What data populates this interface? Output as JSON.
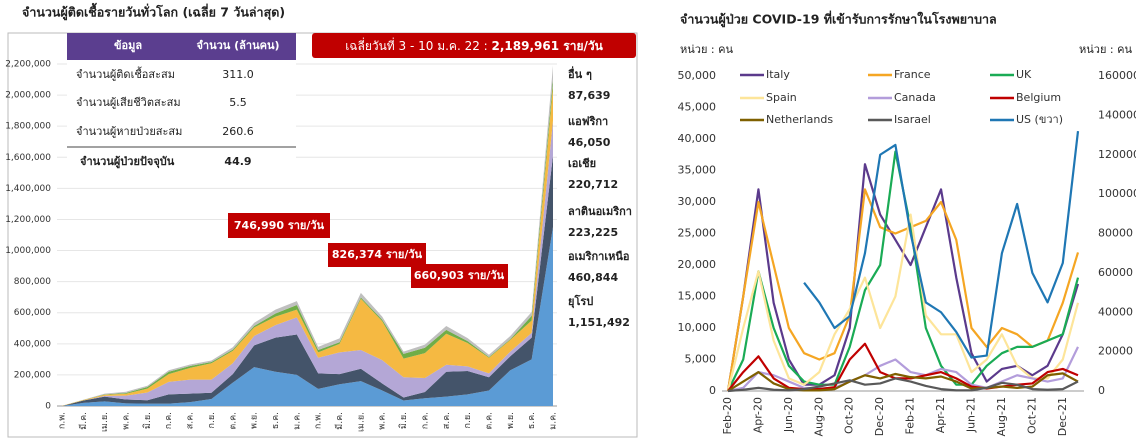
{
  "chart_data": [
    {
      "type": "area",
      "stacked": true,
      "title": "จำนวนผู้ติดเชื้อรายวันทั่วโลก (เฉลี่ย 7 วันล่าสุด)",
      "table": {
        "header": [
          "ข้อมูล",
          "จำนวน (ล้านคน)"
        ],
        "rows": [
          [
            "จำนวนผู้ติดเชื้อสะสม",
            "311.0"
          ],
          [
            "จำนวนผู้เสียชีวิตสะสม",
            "5.5"
          ],
          [
            "จำนวนผู้หายป่วยสะสม",
            "260.6"
          ],
          [
            "จำนวนผู้ป่วยปัจจุบัน",
            "44.9"
          ]
        ]
      },
      "banner": {
        "text": "เฉลี่ยวันที่ 3 - 10 ม.ค. 22 : ",
        "highlight": "2,189,961 ราย/วัน"
      },
      "annotations": [
        "746,990 ราย/วัน",
        "826,374 ราย/วัน",
        "660,903 ราย/วัน"
      ],
      "categories": [
        "ก.พ.",
        "มี.ค.",
        "เม.ย.",
        "พ.ค.",
        "มิ.ย.",
        "ก.ค.",
        "ส.ค.",
        "ก.ย.",
        "ต.ค.",
        "พ.ย.",
        "ธ.ค.",
        "ม.ค.",
        "ก.พ.",
        "มี.ค.",
        "เม.ย.",
        "พ.ค.",
        "มิ.ย.",
        "ก.ค.",
        "ส.ค.",
        "ก.ย.",
        "ต.ค.",
        "พ.ย.",
        "ธ.ค.",
        "ม.ค."
      ],
      "series": [
        {
          "name": "ยุโรป",
          "color": "#5b9bd5",
          "end_label": "1,151,492",
          "values": [
            0,
            20000,
            30000,
            17000,
            15000,
            15000,
            25000,
            45000,
            150000,
            250000,
            220000,
            200000,
            110000,
            140000,
            160000,
            100000,
            35000,
            50000,
            60000,
            75000,
            100000,
            230000,
            300000,
            1151492
          ]
        },
        {
          "name": "อเมริกาเหนือ",
          "color": "#44546a",
          "end_label": "460,844",
          "values": [
            0,
            15000,
            30000,
            25000,
            22000,
            60000,
            55000,
            40000,
            55000,
            140000,
            220000,
            260000,
            100000,
            65000,
            80000,
            45000,
            20000,
            40000,
            160000,
            150000,
            85000,
            90000,
            140000,
            460844
          ]
        },
        {
          "name": "ลาตินอเมริกา",
          "color": "#b4a7d6",
          "end_label": "223,225",
          "values": [
            0,
            500,
            5000,
            25000,
            50000,
            80000,
            90000,
            85000,
            70000,
            60000,
            80000,
            110000,
            100000,
            140000,
            120000,
            150000,
            130000,
            90000,
            45000,
            30000,
            25000,
            30000,
            30000,
            223225
          ]
        },
        {
          "name": "เอเชีย",
          "color": "#f5b942",
          "end_label": "220,712",
          "values": [
            2000,
            3000,
            7000,
            12000,
            25000,
            50000,
            75000,
            105000,
            80000,
            55000,
            55000,
            50000,
            35000,
            55000,
            330000,
            250000,
            120000,
            160000,
            200000,
            150000,
            100000,
            75000,
            80000,
            220712
          ]
        },
        {
          "name": "แอฟริกา",
          "color": "#70ad47",
          "end_label": "46,050",
          "values": [
            0,
            500,
            3000,
            5000,
            10000,
            15000,
            12000,
            8000,
            8000,
            10000,
            20000,
            30000,
            15000,
            10000,
            8000,
            10000,
            30000,
            35000,
            25000,
            12000,
            5000,
            5000,
            30000,
            46050
          ]
        },
        {
          "name": "อื่น ๆ",
          "color": "#bfbfbf",
          "end_label": "87,639",
          "values": [
            0,
            1000,
            5000,
            8000,
            8000,
            10000,
            10000,
            10000,
            15000,
            20000,
            25000,
            25000,
            20000,
            25000,
            30000,
            20000,
            15000,
            20000,
            25000,
            20000,
            15000,
            20000,
            25000,
            87639
          ]
        }
      ],
      "ylim": [
        0,
        2200000
      ],
      "yticks": [
        0,
        {
          "value": 200000,
          "label": "200,000"
        },
        {
          "value": 400000,
          "label": "400,000"
        },
        {
          "value": 600000,
          "label": "600,000"
        },
        {
          "value": 800000,
          "label": "800,000"
        },
        {
          "value": 1000000,
          "label": "1,000,000"
        },
        {
          "value": 1200000,
          "label": "1,200,000"
        },
        {
          "value": 1400000,
          "label": "1,400,000"
        },
        {
          "value": 1600000,
          "label": "1,600,000"
        },
        {
          "value": 1800000,
          "label": "1,800,000"
        },
        {
          "value": 2000000,
          "label": "2,000,000"
        },
        {
          "value": 2200000,
          "label": "2,200,000"
        }
      ],
      "grid": true
    },
    {
      "type": "line",
      "title": "จำนวนผู้ป่วย COVID-19 ที่เข้ารับการรักษาในโรงพยาบาล",
      "y_unit": "หน่วย : คน",
      "y2_unit": "หน่วย : คน",
      "legend": "top-left",
      "categories": [
        "Feb-20",
        null,
        "Apr-20",
        null,
        "Jun-20",
        null,
        "Aug-20",
        null,
        "Oct-20",
        null,
        "Dec-20",
        null,
        "Feb-21",
        null,
        "Apr-21",
        null,
        "Jun-21",
        null,
        "Aug-21",
        null,
        "Oct-21",
        null,
        "Dec-21",
        null
      ],
      "series": [
        {
          "name": "Italy",
          "color": "#5b3a8c",
          "values": [
            0,
            15000,
            32000,
            14000,
            5000,
            1000,
            1000,
            2500,
            10000,
            36000,
            28000,
            24000,
            20000,
            26000,
            32000,
            18000,
            6000,
            1500,
            3500,
            4000,
            2500,
            4000,
            9000,
            17000
          ]
        },
        {
          "name": "France",
          "color": "#f5a623",
          "values": [
            0,
            15000,
            30000,
            20000,
            10000,
            6000,
            5000,
            6000,
            12000,
            32000,
            26000,
            25000,
            26000,
            27000,
            30000,
            24000,
            10000,
            7000,
            10000,
            9000,
            7000,
            8000,
            14000,
            22000
          ]
        },
        {
          "name": "UK",
          "color": "#1aab55",
          "values": [
            0,
            5000,
            19000,
            10000,
            4000,
            1500,
            1000,
            1000,
            7000,
            16000,
            20000,
            38000,
            26000,
            10000,
            4000,
            1000,
            1000,
            4000,
            6000,
            7000,
            7000,
            8000,
            9000,
            18000
          ]
        },
        {
          "name": "Spain",
          "color": "#fde59a",
          "values": [
            0,
            10000,
            19000,
            8000,
            2000,
            1000,
            3000,
            9000,
            13000,
            18000,
            10000,
            15000,
            28000,
            12000,
            9000,
            9000,
            3000,
            5000,
            9000,
            4000,
            2000,
            2000,
            5000,
            14000
          ]
        },
        {
          "name": "Canada",
          "color": "#b39ddb",
          "values": [
            0,
            500,
            3000,
            2500,
            1500,
            500,
            400,
            500,
            1500,
            2500,
            4000,
            5000,
            3000,
            2500,
            3500,
            3000,
            1000,
            500,
            1500,
            2500,
            2000,
            1500,
            2000,
            7000
          ]
        },
        {
          "name": "Belgium",
          "color": "#c00000",
          "values": [
            0,
            3000,
            5500,
            2000,
            500,
            300,
            300,
            600,
            5000,
            7500,
            3000,
            2000,
            2000,
            2500,
            3000,
            2000,
            700,
            400,
            700,
            1000,
            1200,
            3000,
            3500,
            2500
          ]
        },
        {
          "name": "Netherlands",
          "color": "#7f6000",
          "values": [
            0,
            1500,
            3000,
            1200,
            300,
            100,
            100,
            300,
            1500,
            2500,
            2000,
            2700,
            2200,
            2000,
            2300,
            1500,
            400,
            500,
            700,
            500,
            700,
            2500,
            2800,
            1500
          ]
        },
        {
          "name": "Isarael",
          "color": "#595959",
          "values": [
            0,
            200,
            500,
            200,
            100,
            300,
            700,
            1200,
            1700,
            1000,
            1200,
            2000,
            1500,
            800,
            300,
            100,
            100,
            500,
            1300,
            1000,
            300,
            200,
            300,
            1500
          ]
        },
        {
          "name": "US (ขวา)",
          "color": "#1f77b4",
          "axis": "y2",
          "values": [
            null,
            null,
            null,
            null,
            null,
            55000,
            45000,
            32000,
            38000,
            70000,
            120000,
            125000,
            80000,
            45000,
            40000,
            30000,
            17000,
            18000,
            70000,
            95000,
            60000,
            45000,
            65000,
            132000
          ]
        }
      ],
      "ylim": [
        0,
        50000
      ],
      "yticks": [
        0,
        {
          "value": 5000,
          "label": "5,000"
        },
        {
          "value": 10000,
          "label": "10,000"
        },
        {
          "value": 15000,
          "label": "15,000"
        },
        {
          "value": 20000,
          "label": "20,000"
        },
        {
          "value": 25000,
          "label": "25,000"
        },
        {
          "value": 30000,
          "label": "30,000"
        },
        {
          "value": 35000,
          "label": "35,000"
        },
        {
          "value": 40000,
          "label": "40,000"
        },
        {
          "value": 45000,
          "label": "45,000"
        },
        {
          "value": 50000,
          "label": "50,000"
        }
      ],
      "y2lim": [
        0,
        160000
      ],
      "y2ticks": [
        0,
        20000,
        40000,
        60000,
        80000,
        100000,
        120000,
        140000,
        160000
      ],
      "grid": false
    }
  ]
}
